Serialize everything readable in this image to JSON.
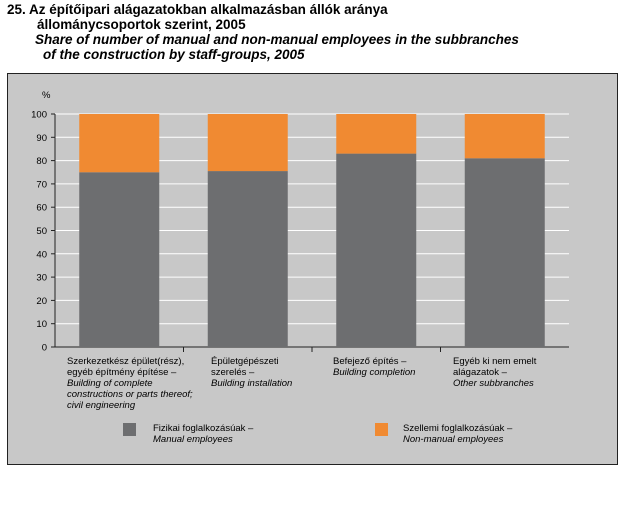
{
  "title": {
    "hu_line1": "25. Az építőipari alágazatokban alkalmazásban állók aránya",
    "hu_line2": "állománycsoportok szerint, 2005",
    "en_line1": "Share of number of manual and non-manual employees in the subbranches",
    "en_line2": "of the construction by staff-groups, 2005"
  },
  "chart_data": {
    "type": "bar",
    "stacked": true,
    "ylabel": "%",
    "ylim": [
      0,
      100
    ],
    "yticks": [
      0,
      10,
      20,
      30,
      40,
      50,
      60,
      70,
      80,
      90,
      100
    ],
    "grid": true,
    "categories": [
      {
        "hu": "Szerkezetkész épület(rész), egyéb építmény építése –",
        "en": "Building of complete constructions or parts thereof; civil engineering"
      },
      {
        "hu": "Épületgépészeti szerelés –",
        "en": "Building installation"
      },
      {
        "hu": "Befejező építés –",
        "en": "Building completion"
      },
      {
        "hu": "Egyéb ki nem emelt alágazatok –",
        "en": "Other subbranches"
      }
    ],
    "series": [
      {
        "name_hu": "Fizikai foglalkozásúak –",
        "name_en": "Manual employees",
        "color": "#6d6e70",
        "values": [
          75,
          75.5,
          83,
          81
        ]
      },
      {
        "name_hu": "Szellemi foglalkozásúak –",
        "name_en": "Non-manual employees",
        "color": "#f08a32",
        "values": [
          25,
          24.5,
          17,
          19
        ]
      }
    ],
    "legend_position": "bottom"
  }
}
